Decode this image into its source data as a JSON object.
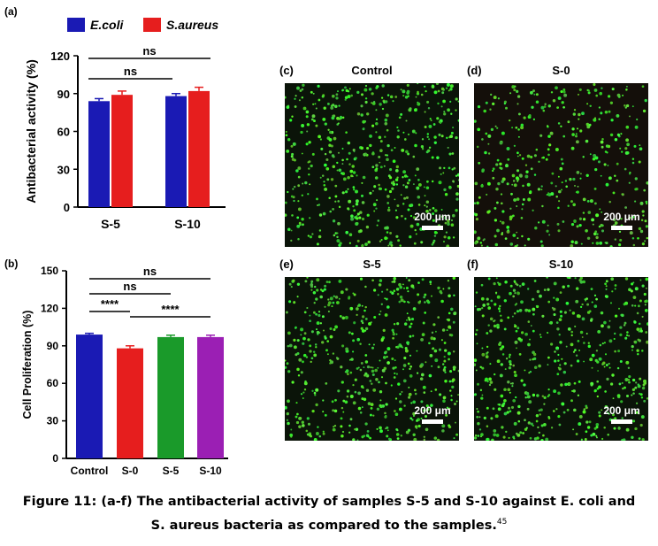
{
  "chart_data": [
    {
      "panel": "(a)",
      "type": "bar",
      "categories": [
        "S-5",
        "S-10"
      ],
      "series": [
        {
          "name": "E.coli",
          "values": [
            84,
            88
          ],
          "errors": [
            2,
            2
          ],
          "color": "#1a1ab4"
        },
        {
          "name": "S.aureus",
          "values": [
            89,
            92
          ],
          "errors": [
            3,
            3
          ],
          "color": "#e61e1e"
        }
      ],
      "ylabel": "Antibacterial activity (%)",
      "ylim": [
        0,
        120
      ],
      "yticks": [
        "0",
        "30",
        "60",
        "90",
        "120"
      ],
      "legend_placement": "top",
      "significance": [
        "ns",
        "ns"
      ]
    },
    {
      "panel": "(b)",
      "type": "bar",
      "categories": [
        "Control",
        "S-0",
        "S-5",
        "S-10"
      ],
      "values": [
        99,
        88,
        97,
        97
      ],
      "errors": [
        1,
        2,
        1.5,
        1.5
      ],
      "colors": [
        "#1a1ab4",
        "#e61e1e",
        "#1a9a2a",
        "#9b1fb4"
      ],
      "ylabel": "Cell Proliferation (%)",
      "ylim": [
        0,
        150
      ],
      "yticks": [
        "0",
        "30",
        "60",
        "90",
        "120",
        "150"
      ],
      "significance": [
        "ns",
        "ns",
        "****",
        "****"
      ]
    }
  ],
  "micrographs": [
    {
      "panel": "(c)",
      "title": "Control",
      "scale": "200"
    },
    {
      "panel": "(d)",
      "title": "S-0",
      "scale": "200"
    },
    {
      "panel": "(e)",
      "title": "S-5",
      "scale": "200"
    },
    {
      "panel": "(f)",
      "title": "S-10",
      "scale": "200"
    }
  ],
  "scale_unit": "μm",
  "caption": {
    "line1": "Figure 11: (a-f) The antibacterial activity of samples S-5 and S-10 against E. coli and",
    "line2": "S. aureus bacteria as compared to the samples.",
    "ref": "45"
  }
}
